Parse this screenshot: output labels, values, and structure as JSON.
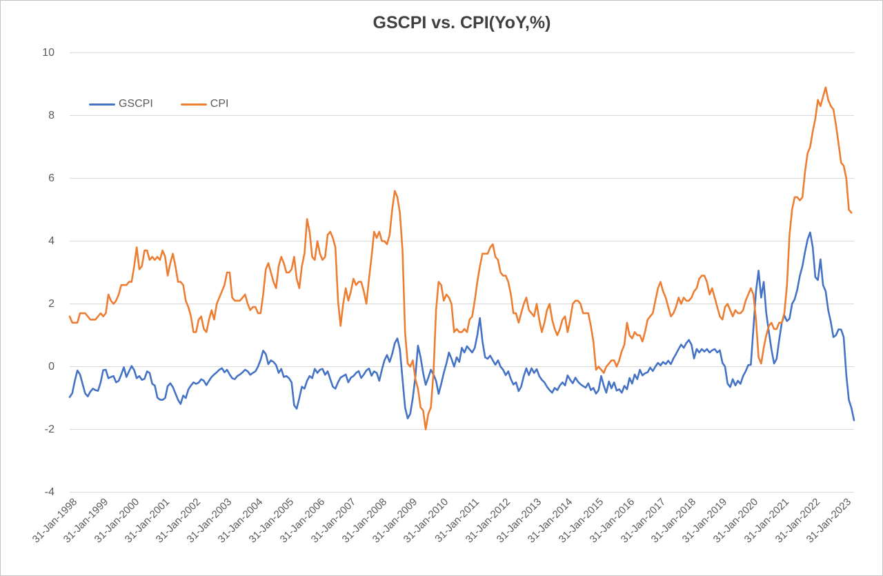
{
  "title": "GSCPI vs. CPI(YoY,%)",
  "axes": {
    "y_ticks": [
      10,
      8,
      6,
      4,
      2,
      0,
      -2,
      -4
    ],
    "x_ticks": [
      "31-Jan-1998",
      "31-Jan-1999",
      "31-Jan-2000",
      "31-Jan-2001",
      "31-Jan-2002",
      "31-Jan-2003",
      "31-Jan-2004",
      "31-Jan-2005",
      "31-Jan-2006",
      "31-Jan-2007",
      "31-Jan-2008",
      "31-Jan-2009",
      "31-Jan-2010",
      "31-Jan-2011",
      "31-Jan-2012",
      "31-Jan-2013",
      "31-Jan-2014",
      "31-Jan-2015",
      "31-Jan-2016",
      "31-Jan-2017",
      "31-Jan-2018",
      "31-Jan-2019",
      "31-Jan-2020",
      "31-Jan-2021",
      "31-Jan-2022",
      "31-Jan-2023"
    ]
  },
  "colors": {
    "gscpi_blue": "#4472C4",
    "cpi_orange": "#ED7D31",
    "gridline": "#D9D9D9",
    "title_text": "#404040",
    "axis_text": "#595959"
  },
  "chart_data": {
    "type": "line",
    "title": "GSCPI vs. CPI(YoY,%)",
    "xlabel": "",
    "ylabel": "",
    "x_unit": "month",
    "x_start": "Jan-1998",
    "x_tick_interval_months": 12,
    "ylim": [
      -4,
      10
    ],
    "grid": "horizontal-only",
    "legend_position": "top-left-inside",
    "series": [
      {
        "name": "GSCPI",
        "color": "#4472C4",
        "values": [
          -0.97,
          -0.85,
          -0.45,
          -0.12,
          -0.25,
          -0.55,
          -0.85,
          -0.95,
          -0.8,
          -0.7,
          -0.75,
          -0.77,
          -0.5,
          -0.11,
          -0.1,
          -0.37,
          -0.33,
          -0.3,
          -0.5,
          -0.45,
          -0.25,
          -0.02,
          -0.33,
          -0.15,
          0.02,
          -0.11,
          -0.37,
          -0.3,
          -0.42,
          -0.39,
          -0.15,
          -0.2,
          -0.55,
          -0.6,
          -0.99,
          -1.05,
          -1.06,
          -1.0,
          -0.62,
          -0.53,
          -0.65,
          -0.85,
          -1.06,
          -1.19,
          -0.92,
          -1.0,
          -0.73,
          -0.6,
          -0.5,
          -0.55,
          -0.51,
          -0.4,
          -0.45,
          -0.59,
          -0.45,
          -0.33,
          -0.25,
          -0.18,
          -0.1,
          -0.05,
          -0.18,
          -0.1,
          -0.25,
          -0.37,
          -0.4,
          -0.3,
          -0.25,
          -0.18,
          -0.1,
          -0.15,
          -0.26,
          -0.2,
          -0.15,
          0.0,
          0.22,
          0.51,
          0.4,
          0.08,
          0.2,
          0.15,
          0.05,
          -0.2,
          -0.07,
          -0.33,
          -0.3,
          -0.37,
          -0.5,
          -1.23,
          -1.34,
          -1.0,
          -0.64,
          -0.7,
          -0.45,
          -0.3,
          -0.37,
          -0.07,
          -0.2,
          -0.1,
          -0.07,
          -0.26,
          -0.15,
          -0.4,
          -0.64,
          -0.7,
          -0.5,
          -0.35,
          -0.3,
          -0.25,
          -0.5,
          -0.35,
          -0.3,
          -0.2,
          -0.14,
          -0.36,
          -0.25,
          -0.12,
          -0.06,
          -0.29,
          -0.15,
          -0.2,
          -0.45,
          -0.1,
          0.2,
          0.37,
          0.15,
          0.4,
          0.75,
          0.9,
          0.55,
          -0.4,
          -1.3,
          -1.65,
          -1.5,
          -1.0,
          -0.3,
          0.67,
          0.3,
          -0.2,
          -0.58,
          -0.35,
          -0.1,
          -0.25,
          -0.45,
          -0.87,
          -0.55,
          -0.2,
          0.1,
          0.45,
          0.25,
          0.0,
          0.3,
          0.15,
          0.6,
          0.45,
          0.65,
          0.55,
          0.45,
          0.6,
          1.0,
          1.55,
          0.8,
          0.3,
          0.25,
          0.35,
          0.2,
          0.06,
          0.2,
          0.0,
          -0.1,
          -0.27,
          -0.15,
          -0.4,
          -0.57,
          -0.5,
          -0.78,
          -0.64,
          -0.3,
          -0.05,
          -0.27,
          -0.05,
          -0.2,
          -0.08,
          -0.3,
          -0.42,
          -0.5,
          -0.64,
          -0.75,
          -0.83,
          -0.68,
          -0.75,
          -0.6,
          -0.5,
          -0.6,
          -0.28,
          -0.42,
          -0.53,
          -0.35,
          -0.48,
          -0.56,
          -0.62,
          -0.67,
          -0.53,
          -0.75,
          -0.68,
          -0.86,
          -0.75,
          -0.3,
          -0.6,
          -0.83,
          -0.47,
          -0.69,
          -0.5,
          -0.76,
          -0.72,
          -0.83,
          -0.61,
          -0.72,
          -0.36,
          -0.54,
          -0.25,
          -0.4,
          -0.1,
          -0.28,
          -0.21,
          -0.18,
          -0.03,
          -0.14,
          0.0,
          0.12,
          0.04,
          0.15,
          0.08,
          0.19,
          0.08,
          0.26,
          0.4,
          0.56,
          0.7,
          0.6,
          0.75,
          0.85,
          0.7,
          0.26,
          0.56,
          0.45,
          0.56,
          0.48,
          0.56,
          0.45,
          0.52,
          0.56,
          0.45,
          0.52,
          0.12,
          0.0,
          -0.54,
          -0.65,
          -0.4,
          -0.6,
          -0.45,
          -0.55,
          -0.3,
          -0.15,
          0.05,
          0.06,
          1.2,
          2.4,
          3.06,
          2.2,
          2.7,
          1.7,
          1.1,
          0.55,
          0.1,
          0.25,
          0.85,
          1.4,
          1.63,
          1.45,
          1.53,
          2.0,
          2.15,
          2.45,
          2.9,
          3.2,
          3.65,
          4.05,
          4.28,
          3.8,
          2.85,
          2.76,
          3.42,
          2.6,
          2.4,
          1.8,
          1.43,
          0.94,
          1.0,
          1.19,
          1.18,
          0.94,
          -0.26,
          -1.06,
          -1.32,
          -1.71
        ]
      },
      {
        "name": "CPI",
        "color": "#ED7D31",
        "values": [
          1.6,
          1.4,
          1.4,
          1.4,
          1.7,
          1.7,
          1.7,
          1.6,
          1.5,
          1.5,
          1.5,
          1.6,
          1.7,
          1.6,
          1.7,
          2.3,
          2.1,
          2.0,
          2.1,
          2.3,
          2.6,
          2.6,
          2.6,
          2.7,
          2.7,
          3.2,
          3.8,
          3.1,
          3.2,
          3.7,
          3.7,
          3.4,
          3.5,
          3.4,
          3.5,
          3.4,
          3.7,
          3.5,
          2.9,
          3.3,
          3.6,
          3.2,
          2.7,
          2.7,
          2.6,
          2.1,
          1.9,
          1.6,
          1.1,
          1.1,
          1.5,
          1.6,
          1.2,
          1.1,
          1.5,
          1.8,
          1.5,
          2.0,
          2.2,
          2.4,
          2.6,
          3.0,
          3.0,
          2.2,
          2.1,
          2.1,
          2.1,
          2.2,
          2.3,
          2.0,
          1.8,
          1.9,
          1.9,
          1.7,
          1.7,
          2.3,
          3.1,
          3.3,
          3.0,
          2.7,
          2.5,
          3.2,
          3.5,
          3.3,
          3.0,
          3.0,
          3.1,
          3.5,
          2.8,
          2.5,
          3.2,
          3.6,
          4.7,
          4.3,
          3.5,
          3.4,
          4.0,
          3.6,
          3.4,
          3.5,
          4.2,
          4.3,
          4.1,
          3.8,
          2.1,
          1.3,
          2.0,
          2.5,
          2.1,
          2.4,
          2.8,
          2.6,
          2.7,
          2.7,
          2.4,
          2.0,
          2.8,
          3.5,
          4.3,
          4.1,
          4.3,
          4.0,
          4.0,
          3.9,
          4.2,
          5.0,
          5.6,
          5.4,
          4.9,
          3.7,
          1.1,
          0.1,
          0.0,
          0.2,
          -0.4,
          -0.7,
          -1.3,
          -1.4,
          -2.0,
          -1.5,
          -1.3,
          -0.2,
          1.8,
          2.7,
          2.6,
          2.1,
          2.3,
          2.2,
          2.0,
          1.1,
          1.2,
          1.1,
          1.1,
          1.2,
          1.1,
          1.5,
          1.6,
          2.1,
          2.7,
          3.2,
          3.6,
          3.6,
          3.6,
          3.8,
          3.9,
          3.5,
          3.4,
          3.0,
          2.9,
          2.9,
          2.7,
          2.3,
          1.7,
          1.7,
          1.4,
          1.7,
          2.0,
          2.2,
          1.8,
          1.7,
          1.6,
          2.0,
          1.5,
          1.1,
          1.4,
          1.8,
          2.0,
          1.5,
          1.2,
          1.0,
          1.2,
          1.5,
          1.6,
          1.1,
          1.5,
          2.0,
          2.1,
          2.1,
          2.0,
          1.7,
          1.7,
          1.7,
          1.3,
          0.8,
          -0.1,
          0.0,
          -0.1,
          -0.2,
          0.0,
          0.1,
          0.2,
          0.2,
          0.0,
          0.2,
          0.5,
          0.7,
          1.4,
          1.0,
          0.9,
          1.1,
          1.0,
          1.0,
          0.8,
          1.1,
          1.5,
          1.6,
          1.7,
          2.1,
          2.5,
          2.7,
          2.4,
          2.2,
          1.9,
          1.6,
          1.7,
          1.9,
          2.2,
          2.0,
          2.2,
          2.1,
          2.1,
          2.2,
          2.4,
          2.5,
          2.8,
          2.9,
          2.9,
          2.7,
          2.3,
          2.5,
          2.2,
          1.9,
          1.6,
          1.5,
          1.9,
          2.0,
          1.8,
          1.6,
          1.8,
          1.7,
          1.7,
          1.8,
          2.1,
          2.3,
          2.5,
          2.3,
          1.5,
          0.3,
          0.1,
          0.6,
          1.0,
          1.3,
          1.4,
          1.2,
          1.2,
          1.4,
          1.4,
          1.7,
          2.6,
          4.2,
          5.0,
          5.4,
          5.4,
          5.3,
          5.4,
          6.2,
          6.8,
          7.0,
          7.5,
          7.9,
          8.5,
          8.3,
          8.6,
          8.9,
          8.5,
          8.3,
          8.2,
          7.7,
          7.1,
          6.5,
          6.4,
          6.0,
          5.0,
          4.9
        ]
      }
    ]
  }
}
